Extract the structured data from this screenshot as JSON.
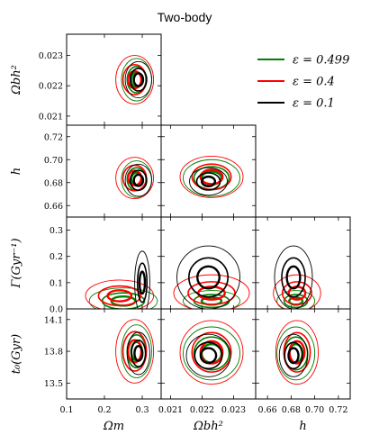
{
  "chart_data": {
    "type": "corner",
    "title": "Two-body",
    "parameters": [
      {
        "key": "om",
        "label": "Ωm",
        "range": [
          0.1,
          0.35
        ],
        "ticks": [
          0.1,
          0.2,
          0.3
        ],
        "tick_labels": [
          "0.1",
          "0.2",
          "0.3"
        ]
      },
      {
        "key": "obh2",
        "label": "Ωbh²",
        "range": [
          0.0207,
          0.0237
        ],
        "ticks": [
          0.021,
          0.022,
          0.023
        ],
        "tick_labels": [
          "0.021",
          "0.022",
          "0.023"
        ]
      },
      {
        "key": "h",
        "label": "h",
        "range": [
          0.65,
          0.73
        ],
        "ticks": [
          0.66,
          0.68,
          0.7,
          0.72
        ],
        "tick_labels": [
          "0.66",
          "0.68",
          "0.70",
          "0.72"
        ]
      },
      {
        "key": "gamma",
        "label": "Γ(Gyr⁻¹)",
        "range": [
          0.0,
          0.35
        ],
        "ticks": [
          0.0,
          0.1,
          0.2,
          0.3
        ],
        "tick_labels": [
          "0.0",
          "0.1",
          "0.2",
          "0.3"
        ]
      },
      {
        "key": "t0",
        "label": "t₀(Gyr)",
        "range": [
          13.35,
          14.2
        ],
        "ticks": [
          13.5,
          13.8,
          14.1
        ],
        "tick_labels": [
          "13.5",
          "13.8",
          "14.1"
        ]
      }
    ],
    "series": [
      {
        "name": "ε = 0.499",
        "color": "#008000"
      },
      {
        "name": "ε = 0.4",
        "color": "#ff0000"
      },
      {
        "name": "ε = 0.1",
        "color": "#000000"
      }
    ],
    "panels": [
      {
        "row": "obh2",
        "col": "om",
        "contours": [
          {
            "series": 0,
            "center": [
              0.285,
              0.0222
            ],
            "semi": [
              0.04,
              0.0007
            ]
          },
          {
            "series": 1,
            "center": [
              0.28,
              0.0222
            ],
            "semi": [
              0.05,
              0.0008
            ]
          },
          {
            "series": 2,
            "center": [
              0.29,
              0.0222
            ],
            "semi": [
              0.035,
              0.0006
            ]
          }
        ]
      },
      {
        "row": "h",
        "col": "om",
        "contours": [
          {
            "series": 0,
            "center": [
              0.285,
              0.683
            ],
            "semi": [
              0.04,
              0.016
            ]
          },
          {
            "series": 1,
            "center": [
              0.28,
              0.684
            ],
            "semi": [
              0.05,
              0.018
            ]
          },
          {
            "series": 2,
            "center": [
              0.29,
              0.682
            ],
            "semi": [
              0.035,
              0.014
            ]
          }
        ]
      },
      {
        "row": "h",
        "col": "obh2",
        "contours": [
          {
            "series": 0,
            "center": [
              0.0223,
              0.684
            ],
            "semi": [
              0.0009,
              0.016
            ]
          },
          {
            "series": 1,
            "center": [
              0.0223,
              0.685
            ],
            "semi": [
              0.001,
              0.018
            ]
          },
          {
            "series": 2,
            "center": [
              0.0222,
              0.681
            ],
            "semi": [
              0.0006,
              0.012
            ]
          }
        ]
      },
      {
        "row": "gamma",
        "col": "om",
        "contours": [
          {
            "series": 0,
            "center": [
              0.25,
              0.03
            ],
            "semi": [
              0.09,
              0.05
            ]
          },
          {
            "series": 1,
            "center": [
              0.24,
              0.05
            ],
            "semi": [
              0.09,
              0.06
            ]
          },
          {
            "series": 2,
            "center": [
              0.3,
              0.1
            ],
            "semi": [
              0.02,
              0.12
            ]
          }
        ]
      },
      {
        "row": "gamma",
        "col": "obh2",
        "contours": [
          {
            "series": 0,
            "center": [
              0.0223,
              0.03
            ],
            "semi": [
              0.0009,
              0.04
            ]
          },
          {
            "series": 1,
            "center": [
              0.0223,
              0.06
            ],
            "semi": [
              0.0012,
              0.07
            ]
          },
          {
            "series": 2,
            "center": [
              0.0222,
              0.12
            ],
            "semi": [
              0.001,
              0.12
            ]
          }
        ]
      },
      {
        "row": "gamma",
        "col": "h",
        "contours": [
          {
            "series": 0,
            "center": [
              0.684,
              0.03
            ],
            "semi": [
              0.016,
              0.04
            ]
          },
          {
            "series": 1,
            "center": [
              0.685,
              0.06
            ],
            "semi": [
              0.02,
              0.07
            ]
          },
          {
            "series": 2,
            "center": [
              0.682,
              0.12
            ],
            "semi": [
              0.016,
              0.12
            ]
          }
        ]
      },
      {
        "row": "t0",
        "col": "om",
        "contours": [
          {
            "series": 0,
            "center": [
              0.285,
              13.8
            ],
            "semi": [
              0.04,
              0.25
            ]
          },
          {
            "series": 1,
            "center": [
              0.28,
              13.8
            ],
            "semi": [
              0.05,
              0.3
            ]
          },
          {
            "series": 2,
            "center": [
              0.29,
              13.78
            ],
            "semi": [
              0.03,
              0.2
            ]
          }
        ]
      },
      {
        "row": "t0",
        "col": "obh2",
        "contours": [
          {
            "series": 0,
            "center": [
              0.0223,
              13.78
            ],
            "semi": [
              0.0009,
              0.25
            ]
          },
          {
            "series": 1,
            "center": [
              0.0223,
              13.79
            ],
            "semi": [
              0.001,
              0.3
            ]
          },
          {
            "series": 2,
            "center": [
              0.0222,
              13.76
            ],
            "semi": [
              0.0007,
              0.2
            ]
          }
        ]
      },
      {
        "row": "t0",
        "col": "h",
        "contours": [
          {
            "series": 0,
            "center": [
              0.684,
              13.78
            ],
            "semi": [
              0.016,
              0.25
            ]
          },
          {
            "series": 1,
            "center": [
              0.685,
              13.79
            ],
            "semi": [
              0.018,
              0.3
            ]
          },
          {
            "series": 2,
            "center": [
              0.682,
              13.76
            ],
            "semi": [
              0.012,
              0.2
            ]
          }
        ]
      }
    ]
  }
}
